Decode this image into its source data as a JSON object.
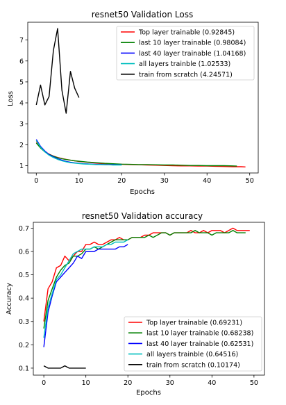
{
  "chart_data": [
    {
      "type": "line",
      "title": "resnet50 Validation Loss",
      "xlabel": "Epochs",
      "ylabel": "Loss",
      "xlim": [
        -2,
        52
      ],
      "ylim": [
        0.65,
        7.85
      ],
      "xticks": [
        0,
        10,
        20,
        30,
        40,
        50
      ],
      "yticks": [
        1,
        2,
        3,
        4,
        5,
        6,
        7
      ],
      "grid": false,
      "legend_position": "top-right",
      "series": [
        {
          "name": "Top layer trainable (0.92845)",
          "color": "#ff0000",
          "x": [
            0,
            1,
            2,
            3,
            4,
            5,
            6,
            7,
            8,
            9,
            10,
            12,
            14,
            16,
            18,
            20,
            22,
            24,
            26,
            28,
            30,
            32,
            34,
            36,
            38,
            40,
            42,
            44,
            46,
            48,
            49
          ],
          "y": [
            2.15,
            1.88,
            1.68,
            1.55,
            1.46,
            1.39,
            1.34,
            1.3,
            1.26,
            1.23,
            1.2,
            1.16,
            1.12,
            1.09,
            1.07,
            1.06,
            1.05,
            1.04,
            1.03,
            1.02,
            1.01,
            1.0,
            0.99,
            0.99,
            0.98,
            0.98,
            0.97,
            0.96,
            0.95,
            0.95,
            0.94
          ]
        },
        {
          "name": "last 10 layer trainable (0.98084)",
          "color": "#008000",
          "x": [
            0,
            1,
            2,
            3,
            4,
            5,
            6,
            7,
            8,
            9,
            10,
            12,
            14,
            16,
            18,
            20,
            22,
            24,
            26,
            28,
            30,
            32,
            34,
            36,
            38,
            40,
            42,
            44,
            46,
            47
          ],
          "y": [
            2.08,
            1.84,
            1.66,
            1.54,
            1.45,
            1.38,
            1.33,
            1.29,
            1.26,
            1.23,
            1.21,
            1.17,
            1.14,
            1.11,
            1.09,
            1.07,
            1.06,
            1.05,
            1.05,
            1.04,
            1.03,
            1.03,
            1.02,
            1.01,
            1.01,
            1.0,
            1.0,
            1.0,
            0.99,
            0.98
          ]
        },
        {
          "name": "last 40 layer trainable (1.04168)",
          "color": "#0000ff",
          "x": [
            0,
            1,
            2,
            3,
            4,
            5,
            6,
            7,
            8,
            9,
            10,
            11,
            12,
            13,
            14,
            15,
            16,
            17,
            18,
            19,
            20
          ],
          "y": [
            2.25,
            1.92,
            1.7,
            1.53,
            1.42,
            1.33,
            1.26,
            1.2,
            1.16,
            1.13,
            1.11,
            1.09,
            1.08,
            1.07,
            1.06,
            1.06,
            1.05,
            1.05,
            1.05,
            1.04,
            1.04
          ]
        },
        {
          "name": "all layers trainble (1.02533)",
          "color": "#00bfbf",
          "x": [
            0,
            1,
            2,
            3,
            4,
            5,
            6,
            7,
            8,
            9,
            10,
            11,
            12,
            13,
            14,
            15,
            16,
            17,
            18,
            19,
            20
          ],
          "y": [
            2.2,
            1.88,
            1.66,
            1.5,
            1.39,
            1.3,
            1.23,
            1.18,
            1.14,
            1.12,
            1.1,
            1.08,
            1.07,
            1.06,
            1.05,
            1.05,
            1.04,
            1.04,
            1.03,
            1.03,
            1.03
          ]
        },
        {
          "name": "train from scratch (4.24571)",
          "color": "#000000",
          "x": [
            0,
            1,
            2,
            3,
            4,
            5,
            6,
            7,
            8,
            9,
            10
          ],
          "y": [
            3.9,
            4.85,
            3.9,
            4.3,
            6.5,
            7.55,
            4.6,
            3.5,
            5.5,
            4.7,
            4.25
          ]
        }
      ]
    },
    {
      "type": "line",
      "title": "resnet50 Validation accuracy",
      "xlabel": "Epochs",
      "ylabel": "Accuracy",
      "xlim": [
        -2.5,
        52.5
      ],
      "ylim": [
        0.07,
        0.725
      ],
      "xticks": [
        0,
        10,
        20,
        30,
        40,
        50
      ],
      "yticks": [
        0.1,
        0.2,
        0.3,
        0.4,
        0.5,
        0.6,
        0.7
      ],
      "grid": false,
      "legend_position": "bottom-right",
      "series": [
        {
          "name": "Top layer trainable (0.69231)",
          "color": "#ff0000",
          "x": [
            0,
            1,
            2,
            3,
            4,
            5,
            6,
            7,
            8,
            9,
            10,
            11,
            12,
            13,
            14,
            15,
            16,
            17,
            18,
            19,
            20,
            21,
            22,
            23,
            24,
            25,
            26,
            27,
            28,
            29,
            30,
            31,
            32,
            33,
            34,
            35,
            36,
            37,
            38,
            39,
            40,
            41,
            42,
            43,
            44,
            45,
            46,
            47,
            48,
            49
          ],
          "y": [
            0.3,
            0.44,
            0.47,
            0.53,
            0.54,
            0.58,
            0.56,
            0.58,
            0.6,
            0.6,
            0.63,
            0.63,
            0.64,
            0.63,
            0.63,
            0.64,
            0.65,
            0.65,
            0.66,
            0.65,
            0.65,
            0.66,
            0.66,
            0.66,
            0.67,
            0.67,
            0.68,
            0.68,
            0.68,
            0.68,
            0.67,
            0.68,
            0.68,
            0.68,
            0.68,
            0.69,
            0.68,
            0.68,
            0.69,
            0.68,
            0.69,
            0.69,
            0.69,
            0.68,
            0.69,
            0.7,
            0.69,
            0.69,
            0.69,
            0.69
          ]
        },
        {
          "name": "last 10 layer trainable (0.68238)",
          "color": "#008000",
          "x": [
            0,
            1,
            2,
            3,
            4,
            5,
            6,
            7,
            8,
            9,
            10,
            11,
            12,
            13,
            14,
            15,
            16,
            17,
            18,
            19,
            20,
            21,
            22,
            23,
            24,
            25,
            26,
            27,
            28,
            29,
            30,
            31,
            32,
            33,
            34,
            35,
            36,
            37,
            38,
            39,
            40,
            41,
            42,
            43,
            44,
            45,
            46,
            47,
            48
          ],
          "y": [
            0.27,
            0.39,
            0.44,
            0.49,
            0.52,
            0.54,
            0.55,
            0.58,
            0.58,
            0.59,
            0.61,
            0.61,
            0.62,
            0.61,
            0.62,
            0.63,
            0.64,
            0.65,
            0.65,
            0.65,
            0.65,
            0.66,
            0.66,
            0.66,
            0.66,
            0.67,
            0.66,
            0.67,
            0.68,
            0.68,
            0.67,
            0.68,
            0.68,
            0.68,
            0.68,
            0.68,
            0.69,
            0.68,
            0.68,
            0.68,
            0.67,
            0.68,
            0.68,
            0.68,
            0.68,
            0.69,
            0.68,
            0.68,
            0.68
          ]
        },
        {
          "name": "last 40 layer trainable (0.62531)",
          "color": "#0000ff",
          "x": [
            0,
            1,
            2,
            3,
            4,
            5,
            6,
            7,
            8,
            9,
            10,
            11,
            12,
            13,
            14,
            15,
            16,
            17,
            18,
            19,
            20
          ],
          "y": [
            0.19,
            0.34,
            0.41,
            0.47,
            0.49,
            0.51,
            0.53,
            0.55,
            0.58,
            0.57,
            0.6,
            0.6,
            0.6,
            0.61,
            0.61,
            0.61,
            0.61,
            0.61,
            0.62,
            0.62,
            0.63
          ]
        },
        {
          "name": "all layers trainble (0.64516)",
          "color": "#00bfbf",
          "x": [
            0,
            1,
            2,
            3,
            4,
            5,
            6,
            7,
            8,
            9,
            10,
            11,
            12,
            13,
            14,
            15,
            16,
            17,
            18,
            19,
            20
          ],
          "y": [
            0.23,
            0.36,
            0.42,
            0.48,
            0.5,
            0.53,
            0.56,
            0.59,
            0.6,
            0.61,
            0.61,
            0.61,
            0.62,
            0.62,
            0.62,
            0.63,
            0.63,
            0.64,
            0.64,
            0.64,
            0.65
          ]
        },
        {
          "name": "train from scratch (0.10174)",
          "color": "#000000",
          "x": [
            0,
            1,
            2,
            3,
            4,
            5,
            6,
            7,
            8,
            9,
            10
          ],
          "y": [
            0.11,
            0.1,
            0.1,
            0.1,
            0.1,
            0.11,
            0.1,
            0.1,
            0.1,
            0.1,
            0.1
          ]
        }
      ]
    }
  ]
}
